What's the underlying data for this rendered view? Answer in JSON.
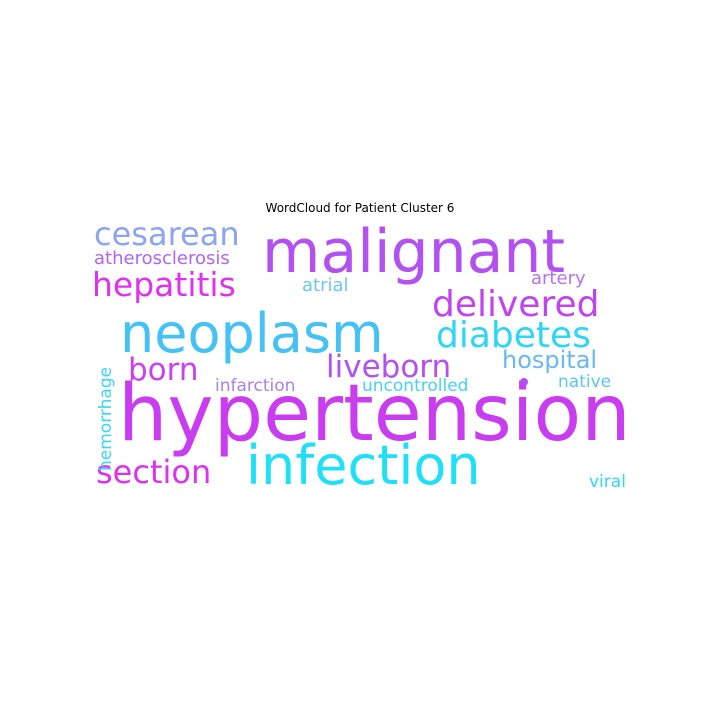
{
  "chart_data": {
    "type": "wordcloud",
    "title": "WordCloud for Patient Cluster 6",
    "words": [
      {
        "text": "hypertension",
        "weight": 1.0,
        "color": "#c93cf0",
        "orientation": "horizontal"
      },
      {
        "text": "neoplasm",
        "weight": 0.9,
        "color": "#44c2f5",
        "orientation": "horizontal"
      },
      {
        "text": "malignant",
        "weight": 0.88,
        "color": "#b250f0",
        "orientation": "horizontal"
      },
      {
        "text": "infection",
        "weight": 0.86,
        "color": "#20e0f8",
        "orientation": "horizontal"
      },
      {
        "text": "delivered",
        "weight": 0.56,
        "color": "#c044f0",
        "orientation": "horizontal"
      },
      {
        "text": "diabetes",
        "weight": 0.54,
        "color": "#2cd6f7",
        "orientation": "horizontal"
      },
      {
        "text": "cesarean",
        "weight": 0.52,
        "color": "#8ca4f2",
        "orientation": "horizontal"
      },
      {
        "text": "hepatitis",
        "weight": 0.52,
        "color": "#e030f0",
        "orientation": "horizontal"
      },
      {
        "text": "section",
        "weight": 0.5,
        "color": "#de30f0",
        "orientation": "horizontal"
      },
      {
        "text": "liveborn",
        "weight": 0.44,
        "color": "#b450f0",
        "orientation": "horizontal"
      },
      {
        "text": "born",
        "weight": 0.44,
        "color": "#cc3ef0",
        "orientation": "horizontal"
      },
      {
        "text": "hospital",
        "weight": 0.36,
        "color": "#68b8f4",
        "orientation": "horizontal"
      },
      {
        "text": "atherosclerosis",
        "weight": 0.28,
        "color": "#b064f2",
        "orientation": "horizontal"
      },
      {
        "text": "artery",
        "weight": 0.26,
        "color": "#b870f2",
        "orientation": "horizontal"
      },
      {
        "text": "atrial",
        "weight": 0.26,
        "color": "#66c8f6",
        "orientation": "horizontal"
      },
      {
        "text": "infarction",
        "weight": 0.25,
        "color": "#a880f2",
        "orientation": "horizontal"
      },
      {
        "text": "uncontrolled",
        "weight": 0.25,
        "color": "#44d2f6",
        "orientation": "horizontal"
      },
      {
        "text": "native",
        "weight": 0.25,
        "color": "#58c6f6",
        "orientation": "horizontal"
      },
      {
        "text": "hemorrhage",
        "weight": 0.25,
        "color": "#38d8f6",
        "orientation": "vertical"
      },
      {
        "text": "viral",
        "weight": 0.25,
        "color": "#30d8f8",
        "orientation": "horizontal"
      }
    ],
    "dots": [
      {
        "color": "#b250f0"
      }
    ]
  }
}
